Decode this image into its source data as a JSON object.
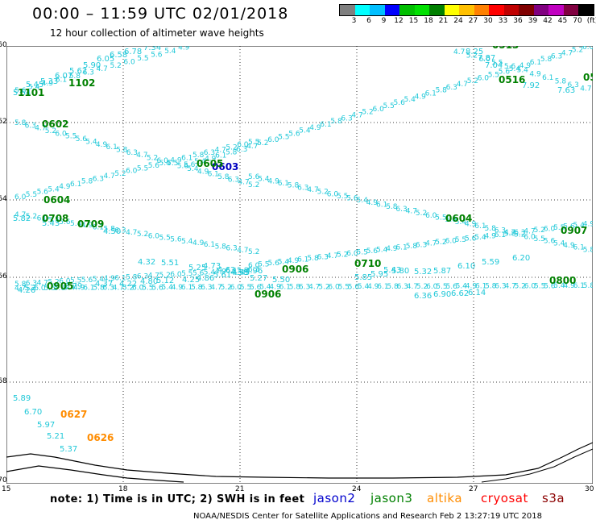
{
  "title": "00:00 – 11:59 UTC 02/01/2018",
  "subtitle": "12 hour collection of altimeter wave heights",
  "scale": {
    "colors": [
      "#7f7f7f",
      "#00ffff",
      "#00bfff",
      "#0000ff",
      "#00bf00",
      "#00e000",
      "#008000",
      "#ffff00",
      "#ffc000",
      "#ff8000",
      "#ff0000",
      "#c00000",
      "#800000",
      "#800080",
      "#c000c0",
      "#800040",
      "#000000"
    ],
    "labels": [
      "3",
      "6",
      "9",
      "12",
      "15",
      "18",
      "21",
      "24",
      "27",
      "30",
      "33",
      "36",
      "39",
      "42",
      "45",
      "70",
      "(ft)"
    ]
  },
  "lat_labels": [
    "-60",
    "-62",
    "-64",
    "-66",
    "-68",
    "-70"
  ],
  "lon_labels": [
    "15",
    "18",
    "21",
    "24",
    "27",
    "30"
  ],
  "track_labels": [
    {
      "text": "1101",
      "color": "#008000"
    },
    {
      "text": "1102",
      "color": "#008000"
    },
    {
      "text": "0602",
      "color": "#008000"
    },
    {
      "text": "0603",
      "color": "#0000c0"
    },
    {
      "text": "0605",
      "color": "#008000"
    },
    {
      "text": "0604",
      "color": "#008000"
    },
    {
      "text": "0708",
      "color": "#008000"
    },
    {
      "text": "0709",
      "color": "#008000"
    },
    {
      "text": "0906",
      "color": "#008000"
    },
    {
      "text": "0710",
      "color": "#008000"
    },
    {
      "text": "0905",
      "color": "#008000"
    },
    {
      "text": "0906",
      "color": "#008000"
    },
    {
      "text": "0513",
      "color": "#008000"
    },
    {
      "text": "0516",
      "color": "#008000"
    },
    {
      "text": "05",
      "color": "#008000"
    },
    {
      "text": "0604",
      "color": "#008000"
    },
    {
      "text": "0907",
      "color": "#008000"
    },
    {
      "text": "0800",
      "color": "#008000"
    },
    {
      "text": "0627",
      "color": "#ff8c00"
    },
    {
      "text": "0626",
      "color": "#ff8c00"
    }
  ],
  "wave_labels": [
    "5.64",
    "5.45",
    "5.33",
    "6.07",
    "5.62",
    "5.90",
    "6.05",
    "6.58",
    "6.78",
    "7.34",
    "5.82",
    "5.43",
    "4.50",
    "4.32",
    "5.51",
    "5.25",
    "4.73",
    "4.63",
    "4.45",
    "5.27",
    "5.50",
    "5.85",
    "5.95",
    "5.80",
    "5.32",
    "5.87",
    "6.10",
    "5.59",
    "6.20",
    "5.43",
    "6.36",
    "6.90",
    "6.62",
    "6.14",
    "4.26",
    "3.79",
    "4.37",
    "4.22",
    "4.80",
    "5.12",
    "4.25",
    "4.86",
    "5.61",
    "4.58",
    "4.96",
    "8.25",
    "7.87",
    "7.04",
    "7.92",
    "7.63",
    "5.89",
    "6.70",
    "5.97",
    "5.21",
    "5.37"
  ],
  "note": "note: 1) Time is in UTC; 2) SWH is in feet",
  "legend": [
    {
      "name": "jason2",
      "color": "#0000cd"
    },
    {
      "name": "jason3",
      "color": "#008000"
    },
    {
      "name": "altika",
      "color": "#ff8c00"
    },
    {
      "name": "cryosat",
      "color": "#ff0000"
    },
    {
      "name": "s3a",
      "color": "#8b0000"
    }
  ],
  "credit": "NOAA/NESDIS Center for Satellite Applications and Research    Feb  2 13:27:19 UTC 2018"
}
